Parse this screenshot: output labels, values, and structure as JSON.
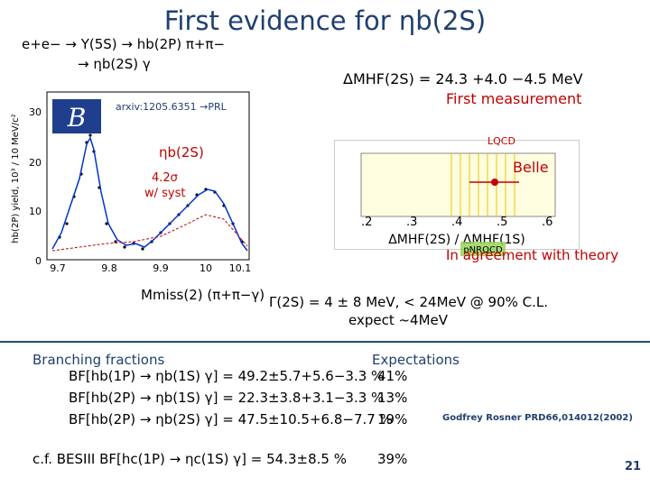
{
  "slide": {
    "title": "First evidence for ηb(2S)",
    "decay_line1": "e+e− → Υ(5S) → hb(2P) π+π−",
    "decay_line2": "→ ηb(2S) γ",
    "delta_m": "ΔMHF(2S) = 24.3 +4.0 −4.5 MeV",
    "first_measurement": "First measurement",
    "arxiv": "arxiv:1205.6351 →PRL",
    "plot_label": "ηb(2S)",
    "significance": "4.2σ",
    "significance2": "w/ syst",
    "ylabel": "hb(2P) yield, 10³ / 10 MeV/c²",
    "xlabel": "Mmiss(2) (π+π−γ)",
    "lqcd": "LQCD",
    "belle": "Belle",
    "pnrqcd": "pNRQCD",
    "agreement": "In agreement with theory",
    "width_line1": "Γ(2S) = 4 ± 8 MeV, < 24MeV @ 90% C.L.",
    "width_line2": "expect ~4MeV",
    "bf_header": "Branching fractions",
    "exp_header": "Expectations",
    "bf": [
      {
        "text": "BF[hb(1P) → ηb(1S) γ] = 49.2±5.7+5.6−3.3 %",
        "exp": "41%"
      },
      {
        "text": "BF[hb(2P) → ηb(1S) γ] = 22.3±3.8+3.1−3.3 %",
        "exp": "13%"
      },
      {
        "text": "BF[hb(2P) → ηb(2S) γ] = 47.5±10.5+6.8−7.7 %",
        "exp": "19%"
      }
    ],
    "godfrey": "Godfrey Rosner PRD66,014012(2002)",
    "besiii": "c.f. BESIII BF[hc(1P) → ηc(1S) γ] = 54.3±8.5 %",
    "besiii_exp": "39%",
    "page_number": "21",
    "y_ticks": [
      "30",
      "20",
      "10",
      "0"
    ],
    "x_ticks": [
      "9.7",
      "9.8",
      "9.9",
      "10",
      "10.1"
    ],
    "panel_ticks": [
      ".2",
      ".3",
      ".4",
      ".5",
      ".6"
    ],
    "panel_xlabel": "ΔMHF(2S) / ΔMHF(1S)",
    "colors": {
      "title": "#1f3f6e",
      "red": "#c00000",
      "green": "#92d050"
    }
  }
}
